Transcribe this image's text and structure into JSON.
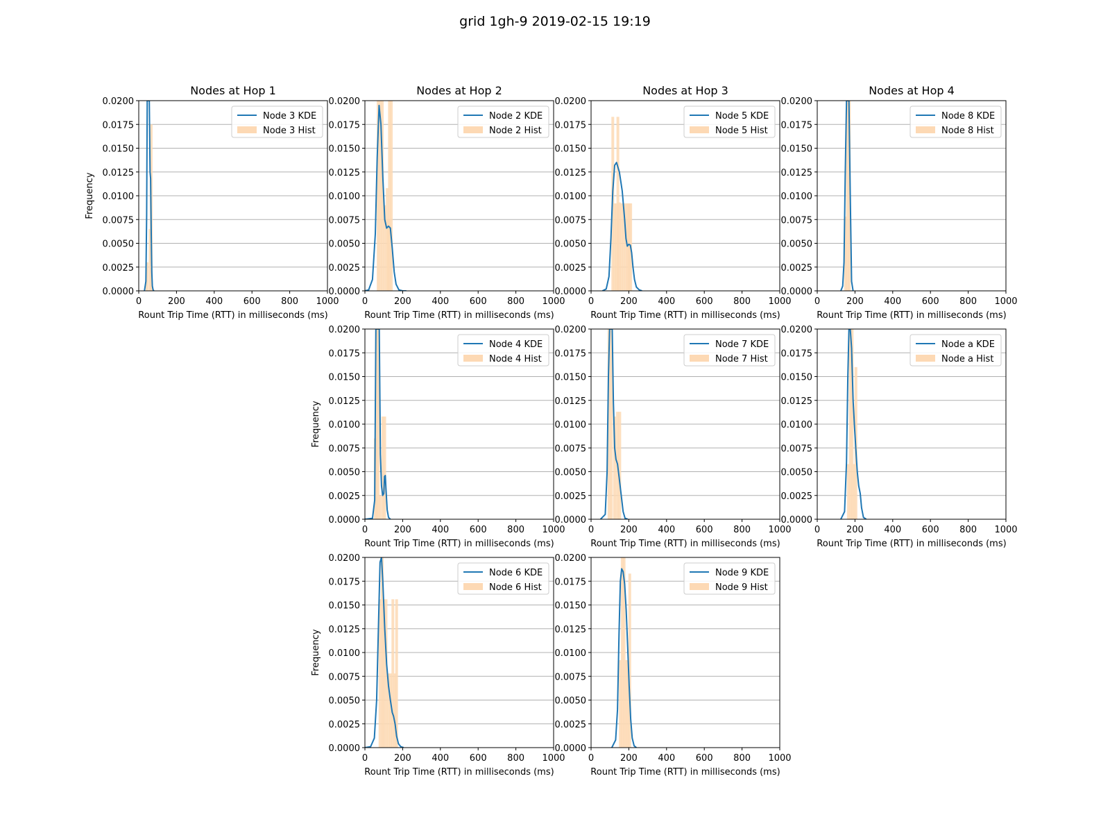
{
  "figure": {
    "title": "grid 1gh-9 2019-02-15 19:19"
  },
  "colors": {
    "kde": "#1f77b4",
    "hist": "#fdd9b4",
    "grid": "#b0b0b0"
  },
  "chart_data": [
    {
      "type": "area",
      "title": "Nodes at Hop 1",
      "xlabel": "Rount Trip Time (RTT) in milliseconds (ms)",
      "ylabel": "Frequency",
      "xlim": [
        0,
        1000
      ],
      "ylim": [
        0,
        0.02
      ],
      "grid": "y",
      "legend": "top-right",
      "x_ticks": [
        "0",
        "200",
        "400",
        "600",
        "800",
        "1000"
      ],
      "y_ticks": [
        "0.0000",
        "0.0025",
        "0.0050",
        "0.0075",
        "0.0100",
        "0.0125",
        "0.0150",
        "0.0175",
        "0.0200"
      ],
      "series": [
        {
          "name": "Node 3 KDE",
          "kind": "kde",
          "x": [
            30,
            38,
            42,
            45,
            48,
            52,
            56,
            60,
            63,
            66,
            69,
            72,
            76,
            80
          ],
          "y": [
            0,
            0.001,
            0.008,
            0.02,
            0.02,
            0.02,
            0.02,
            0.0125,
            0.0118,
            0.006,
            0.002,
            0.0005,
            0.0001,
            0
          ]
        },
        {
          "name": "Node 3 Hist",
          "kind": "hist",
          "x": [
            44,
            60,
            66
          ],
          "y": [
            0.003,
            0.0065,
            0.0175
          ]
        }
      ]
    },
    {
      "type": "area",
      "title": "Nodes at Hop 2",
      "xlabel": "Rount Trip Time (RTT) in milliseconds (ms)",
      "ylabel": "",
      "xlim": [
        0,
        1000
      ],
      "ylim": [
        0,
        0.02
      ],
      "grid": "y",
      "legend": "top-right",
      "x_ticks": [
        "0",
        "200",
        "400",
        "600",
        "800",
        "1000"
      ],
      "y_ticks": [
        "0.0000",
        "0.0025",
        "0.0050",
        "0.0075",
        "0.0100",
        "0.0125",
        "0.0150",
        "0.0175",
        "0.0200"
      ],
      "series": [
        {
          "name": "Node 2 KDE",
          "kind": "kde",
          "x": [
            0,
            20,
            40,
            55,
            65,
            75,
            85,
            95,
            105,
            115,
            125,
            135,
            145,
            155,
            165,
            180,
            200,
            220
          ],
          "y": [
            0,
            0.0001,
            0.0012,
            0.006,
            0.014,
            0.0195,
            0.0175,
            0.012,
            0.0075,
            0.0066,
            0.0068,
            0.0066,
            0.0045,
            0.002,
            0.0007,
            0.0001,
            0,
            0
          ]
        },
        {
          "name": "Node 2 Hist",
          "kind": "hist",
          "x": [
            70,
            80,
            92,
            105,
            118,
            124,
            130,
            140
          ],
          "y": [
            0.02,
            0.02,
            0.02,
            0.009,
            0.0108,
            0.0075,
            0.02,
            0.02
          ]
        }
      ]
    },
    {
      "type": "area",
      "title": "Nodes at Hop 3",
      "xlabel": "Rount Trip Time (RTT) in milliseconds (ms)",
      "ylabel": "",
      "xlim": [
        0,
        1000
      ],
      "ylim": [
        0,
        0.02
      ],
      "grid": "y",
      "legend": "top-right",
      "x_ticks": [
        "0",
        "200",
        "400",
        "600",
        "800",
        "1000"
      ],
      "y_ticks": [
        "0.0000",
        "0.0025",
        "0.0050",
        "0.0075",
        "0.0100",
        "0.0125",
        "0.0150",
        "0.0175",
        "0.0200"
      ],
      "series": [
        {
          "name": "Node 5 KDE",
          "kind": "kde",
          "x": [
            60,
            80,
            95,
            105,
            115,
            125,
            135,
            150,
            165,
            178,
            185,
            192,
            200,
            208,
            215,
            222,
            230,
            240,
            255,
            270
          ],
          "y": [
            0,
            0.0002,
            0.0015,
            0.0055,
            0.0105,
            0.0132,
            0.0135,
            0.0125,
            0.0105,
            0.0075,
            0.0055,
            0.0047,
            0.0049,
            0.0048,
            0.004,
            0.0025,
            0.0012,
            0.0004,
            0.0001,
            0
          ]
        },
        {
          "name": "Node 5 Hist",
          "kind": "hist",
          "x": [
            115,
            125,
            135,
            142,
            150,
            160,
            172,
            185,
            195,
            202,
            210
          ],
          "y": [
            0.0183,
            0.0092,
            0.0092,
            0.0183,
            0.0093,
            0.0092,
            0.0092,
            0.0092,
            0.0092,
            0.0092,
            0.0092
          ]
        }
      ]
    },
    {
      "type": "area",
      "title": "Nodes at Hop 4",
      "xlabel": "Rount Trip Time (RTT) in milliseconds (ms)",
      "ylabel": "",
      "xlim": [
        0,
        1000
      ],
      "ylim": [
        0,
        0.02
      ],
      "grid": "y",
      "legend": "top-right",
      "x_ticks": [
        "0",
        "200",
        "400",
        "600",
        "800",
        "1000"
      ],
      "y_ticks": [
        "0.0000",
        "0.0025",
        "0.0050",
        "0.0075",
        "0.0100",
        "0.0125",
        "0.0150",
        "0.0175",
        "0.0200"
      ],
      "series": [
        {
          "name": "Node 8 KDE",
          "kind": "kde",
          "x": [
            125,
            135,
            142,
            148,
            155,
            162,
            168,
            175,
            182,
            190
          ],
          "y": [
            0,
            0.0005,
            0.003,
            0.012,
            0.02,
            0.02,
            0.02,
            0.01,
            0.001,
            0
          ]
        },
        {
          "name": "Node 8 Hist",
          "kind": "hist",
          "x": [
            150,
            160,
            170
          ],
          "y": [
            0.0078,
            0.02,
            0.02
          ]
        }
      ]
    },
    {
      "type": "area",
      "title": "",
      "xlabel": "Rount Trip Time (RTT) in milliseconds (ms)",
      "ylabel": "Frequency",
      "xlim": [
        0,
        1000
      ],
      "ylim": [
        0,
        0.02
      ],
      "grid": "y",
      "legend": "top-right",
      "x_ticks": [
        "0",
        "200",
        "400",
        "600",
        "800",
        "1000"
      ],
      "y_ticks": [
        "0.0000",
        "0.0025",
        "0.0050",
        "0.0075",
        "0.0100",
        "0.0125",
        "0.0150",
        "0.0175",
        "0.0200"
      ],
      "series": [
        {
          "name": "Node 4 KDE",
          "kind": "kde",
          "x": [
            0,
            40,
            52,
            58,
            64,
            70,
            76,
            82,
            88,
            94,
            100,
            104,
            108,
            112,
            118,
            125,
            135
          ],
          "y": [
            0,
            0.0001,
            0.002,
            0.02,
            0.02,
            0.02,
            0.02,
            0.0068,
            0.0035,
            0.0025,
            0.0027,
            0.0045,
            0.0046,
            0.003,
            0.001,
            0.0002,
            0
          ]
        },
        {
          "name": "Node 4 Hist",
          "kind": "hist",
          "x": [
            55,
            62,
            70,
            80,
            95,
            105
          ],
          "y": [
            0.0085,
            0.02,
            0.02,
            0.0025,
            0.0108,
            0.0108
          ]
        }
      ]
    },
    {
      "type": "area",
      "title": "",
      "xlabel": "Rount Trip Time (RTT) in milliseconds (ms)",
      "ylabel": "",
      "xlim": [
        0,
        1000
      ],
      "ylim": [
        0,
        0.02
      ],
      "grid": "y",
      "legend": "top-right",
      "x_ticks": [
        "0",
        "200",
        "400",
        "600",
        "800",
        "1000"
      ],
      "y_ticks": [
        "0.0000",
        "0.0025",
        "0.0050",
        "0.0075",
        "0.0100",
        "0.0125",
        "0.0150",
        "0.0175",
        "0.0200"
      ],
      "series": [
        {
          "name": "Node 7 KDE",
          "kind": "kde",
          "x": [
            50,
            75,
            85,
            92,
            98,
            105,
            112,
            118,
            125,
            132,
            140,
            148,
            155,
            163,
            170,
            180,
            195
          ],
          "y": [
            0,
            0.0005,
            0.005,
            0.015,
            0.02,
            0.02,
            0.02,
            0.0125,
            0.0075,
            0.0063,
            0.0058,
            0.0045,
            0.0033,
            0.002,
            0.0008,
            0.0001,
            0
          ]
        },
        {
          "name": "Node 7 Hist",
          "kind": "hist",
          "x": [
            95,
            108,
            125,
            140,
            152
          ],
          "y": [
            0.02,
            0.02,
            0.0108,
            0.0113,
            0.0113
          ]
        }
      ]
    },
    {
      "type": "area",
      "title": "",
      "xlabel": "Rount Trip Time (RTT) in milliseconds (ms)",
      "ylabel": "",
      "xlim": [
        0,
        1000
      ],
      "ylim": [
        0,
        0.02
      ],
      "grid": "y",
      "legend": "top-right",
      "x_ticks": [
        "0",
        "200",
        "400",
        "600",
        "800",
        "1000"
      ],
      "y_ticks": [
        "0.0000",
        "0.0025",
        "0.0050",
        "0.0075",
        "0.0100",
        "0.0125",
        "0.0150",
        "0.0175",
        "0.0200"
      ],
      "series": [
        {
          "name": "Node a KDE",
          "kind": "kde",
          "x": [
            125,
            145,
            155,
            162,
            168,
            175,
            182,
            190,
            198,
            205,
            212,
            220,
            228,
            235,
            245,
            260
          ],
          "y": [
            0,
            0.0008,
            0.006,
            0.015,
            0.02,
            0.02,
            0.018,
            0.0125,
            0.0095,
            0.0072,
            0.005,
            0.0035,
            0.0027,
            0.0012,
            0.0002,
            0
          ]
        },
        {
          "name": "Node a Hist",
          "kind": "hist",
          "x": [
            165,
            175,
            185,
            195,
            205
          ],
          "y": [
            0.0058,
            0.02,
            0.02,
            0.0058,
            0.016
          ]
        }
      ]
    },
    {
      "type": "area",
      "title": "",
      "xlabel": "Rount Trip Time (RTT) in milliseconds (ms)",
      "ylabel": "Frequency",
      "xlim": [
        0,
        1000
      ],
      "ylim": [
        0,
        0.02
      ],
      "grid": "y",
      "legend": "top-right",
      "x_ticks": [
        "0",
        "200",
        "400",
        "600",
        "800",
        "1000"
      ],
      "y_ticks": [
        "0.0000",
        "0.0025",
        "0.0050",
        "0.0075",
        "0.0100",
        "0.0125",
        "0.0150",
        "0.0175",
        "0.0200"
      ],
      "series": [
        {
          "name": "Node 6 KDE",
          "kind": "kde",
          "x": [
            0,
            30,
            50,
            62,
            72,
            80,
            88,
            95,
            105,
            115,
            125,
            135,
            145,
            152,
            160,
            168,
            178,
            190,
            205
          ],
          "y": [
            0,
            0.0001,
            0.001,
            0.005,
            0.013,
            0.0195,
            0.02,
            0.0175,
            0.0125,
            0.0088,
            0.0065,
            0.005,
            0.0037,
            0.0033,
            0.0025,
            0.0012,
            0.0004,
            0.0001,
            0
          ]
        },
        {
          "name": "Node 6 Hist",
          "kind": "hist",
          "x": [
            80,
            92,
            100,
            112,
            124,
            136,
            148,
            160,
            168
          ],
          "y": [
            0.0156,
            0.02,
            0.0156,
            0.0156,
            0.0078,
            0.0078,
            0.0156,
            0.0078,
            0.0156
          ]
        }
      ]
    },
    {
      "type": "area",
      "title": "",
      "xlabel": "Rount Trip Time (RTT) in milliseconds (ms)",
      "ylabel": "",
      "xlim": [
        0,
        1000
      ],
      "ylim": [
        0,
        0.02
      ],
      "grid": "y",
      "legend": "top-right",
      "x_ticks": [
        "0",
        "200",
        "400",
        "600",
        "800",
        "1000"
      ],
      "y_ticks": [
        "0.0000",
        "0.0025",
        "0.0050",
        "0.0075",
        "0.0100",
        "0.0125",
        "0.0150",
        "0.0175",
        "0.0200"
      ],
      "series": [
        {
          "name": "Node 9 KDE",
          "kind": "kde",
          "x": [
            110,
            130,
            140,
            148,
            155,
            162,
            170,
            178,
            186,
            194,
            202,
            210,
            218,
            228,
            240
          ],
          "y": [
            0,
            0.0008,
            0.004,
            0.012,
            0.0175,
            0.0188,
            0.0185,
            0.0172,
            0.0145,
            0.0105,
            0.0065,
            0.003,
            0.001,
            0.0002,
            0
          ]
        },
        {
          "name": "Node 9 Hist",
          "kind": "hist",
          "x": [
            155,
            165,
            175,
            185,
            195,
            205
          ],
          "y": [
            0.0092,
            0.02,
            0.02,
            0.0092,
            0.0092,
            0.0183
          ]
        }
      ]
    }
  ]
}
